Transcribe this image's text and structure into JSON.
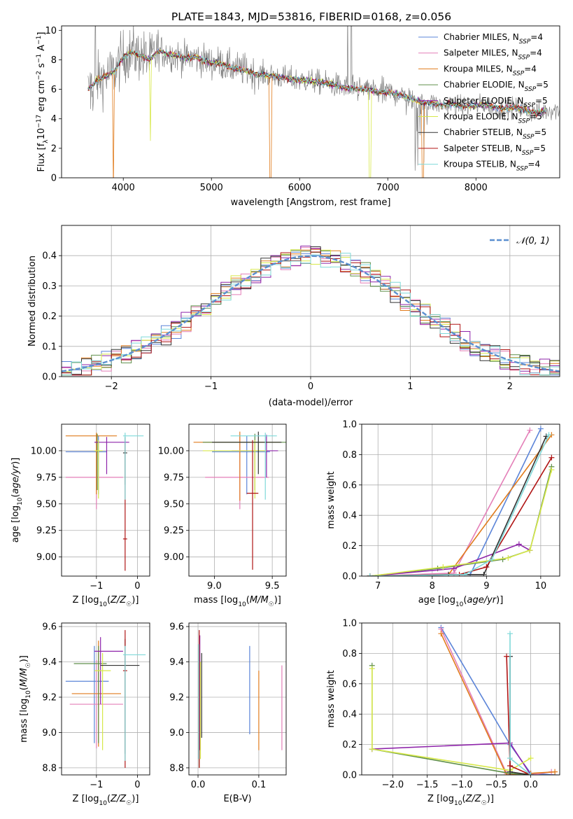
{
  "title": "PLATE=1843, MJD=53816, FIBERID=0168, z=0.056",
  "colors": {
    "Chabrier MILES": "#5b84d8",
    "Salpeter MILES": "#e47fb8",
    "Kroupa MILES": "#e07b1c",
    "Chabrier ELODIE": "#5f8f4a",
    "Salpeter ELODIE": "#8e24aa",
    "Kroupa ELODIE": "#d7e84a",
    "Chabrier STELIB": "#333333",
    "Salpeter STELIB": "#b01515",
    "Kroupa STELIB": "#7fd9d9",
    "data": "#808080",
    "normal": "#5b8fd0"
  },
  "chart_data": [
    {
      "type": "line",
      "panel": "spectrum",
      "xlabel": "wavelength [Angstrom, rest frame]",
      "ylabel": "Flux [f_λ 10^-17 erg cm^-2 s^-1 A^-1]",
      "xlim": [
        3300,
        8950
      ],
      "ylim": [
        0,
        10.3
      ],
      "xticks": [
        4000,
        5000,
        6000,
        7000,
        8000
      ],
      "yticks": [
        0,
        2,
        4,
        6,
        8,
        10
      ],
      "legend_position": "upper right",
      "legend": [
        {
          "name": "Chabrier MILES",
          "nssp": "4"
        },
        {
          "name": "Salpeter MILES",
          "nssp": "4"
        },
        {
          "name": "Kroupa MILES",
          "nssp": "4"
        },
        {
          "name": "Chabrier ELODIE",
          "nssp": "5"
        },
        {
          "name": "Salpeter ELODIE",
          "nssp": "5"
        },
        {
          "name": "Kroupa ELODIE",
          "nssp": "5"
        },
        {
          "name": "Chabrier STELIB",
          "nssp": "5"
        },
        {
          "name": "Salpeter STELIB",
          "nssp": "5"
        },
        {
          "name": "Kroupa STELIB",
          "nssp": "4"
        }
      ],
      "model_continuum": {
        "x": [
          3600,
          3650,
          3700,
          3800,
          3900,
          4000,
          4100,
          4200,
          4300,
          4400,
          4500,
          4600,
          4700,
          4800,
          4900,
          5000,
          5100,
          5200,
          5300,
          5400,
          5500,
          5600,
          5700,
          5800,
          5900,
          6000,
          6100,
          6200,
          6300,
          6400,
          6500,
          6600,
          6700,
          6800,
          6900,
          7000,
          7100,
          7200,
          7300,
          7400,
          7500,
          7600,
          7700,
          7800,
          7900,
          8000,
          8100,
          8200,
          8300,
          8400,
          8500,
          8600,
          8700,
          8800
        ],
        "y": [
          6.0,
          6.3,
          6.6,
          6.9,
          7.2,
          8.2,
          8.5,
          8.3,
          8.0,
          8.6,
          8.4,
          8.3,
          8.1,
          8.2,
          8.0,
          7.8,
          7.8,
          7.5,
          7.4,
          7.3,
          7.0,
          7.0,
          6.9,
          6.8,
          6.7,
          6.6,
          6.6,
          6.5,
          6.4,
          6.3,
          6.1,
          6.1,
          6.0,
          6.0,
          5.8,
          5.8,
          5.7,
          5.5,
          5.3,
          5.1,
          5.1,
          4.9,
          5.0,
          4.9,
          4.8,
          4.9,
          5.0,
          4.8,
          4.7,
          4.8,
          4.7,
          4.5,
          4.4,
          4.6
        ]
      }
    },
    {
      "type": "line",
      "panel": "residual histogram",
      "xlabel": "(data-model)/error",
      "ylabel": "Normed distribution",
      "xlim": [
        -2.5,
        2.5
      ],
      "ylim": [
        0,
        0.5
      ],
      "xticks": [
        -2,
        -1,
        0,
        1,
        2
      ],
      "yticks": [
        0.0,
        0.1,
        0.2,
        0.3,
        0.4
      ],
      "legend_position": "upper right",
      "normal_label": "𝒩(0, 1)",
      "bin_width": 0.1,
      "grid": true
    },
    {
      "type": "scatter",
      "panel": "age vs Z",
      "xlabel": "Z [log10(Z/Z☉)]",
      "ylabel": "age [log10(age/yr)]",
      "xlim": [
        -1.85,
        0.3
      ],
      "ylim": [
        8.82,
        10.25
      ],
      "xticks": [
        -1,
        0
      ],
      "yticks": [
        9.0,
        9.25,
        9.5,
        9.75,
        10.0
      ],
      "grid": true,
      "series": [
        {
          "name": "Chabrier MILES",
          "x": -0.95,
          "xerr": [
            0.8,
            0.2
          ],
          "y": 9.99,
          "yerr": [
            0.4,
            0.15
          ]
        },
        {
          "name": "Salpeter MILES",
          "x": -1.0,
          "xerr": [
            0.75,
            0.65
          ],
          "y": 9.75,
          "yerr": [
            0.3,
            0.4
          ]
        },
        {
          "name": "Kroupa MILES",
          "x": -1.0,
          "xerr": [
            0.75,
            0.5
          ],
          "y": 10.14,
          "yerr": [
            0.55,
            0.03
          ]
        },
        {
          "name": "Chabrier ELODIE",
          "x": -0.98,
          "xerr": [
            0.05,
            0.05
          ],
          "y": 10.08,
          "yerr": [
            0.45,
            0.08
          ]
        },
        {
          "name": "Salpeter ELODIE",
          "x": -0.75,
          "xerr": [
            0.3,
            0.55
          ],
          "y": 10.08,
          "yerr": [
            0.3,
            0.05
          ]
        },
        {
          "name": "Kroupa ELODIE",
          "x": -0.95,
          "xerr": [
            0.1,
            0.1
          ],
          "y": 10.0,
          "yerr": [
            0.45,
            0.1
          ]
        },
        {
          "name": "Chabrier STELIB",
          "x": -0.3,
          "xerr": [
            0.05,
            0.05
          ],
          "y": 9.98,
          "yerr": [
            0.3,
            0.15
          ]
        },
        {
          "name": "Salpeter STELIB",
          "x": -0.3,
          "xerr": [
            0.05,
            0.05
          ],
          "y": 9.17,
          "yerr": [
            0.3,
            0.9
          ]
        },
        {
          "name": "Kroupa STELIB",
          "x": -0.3,
          "xerr": [
            0.05,
            0.45
          ],
          "y": 10.14,
          "yerr": [
            0.6,
            0.03
          ]
        }
      ]
    },
    {
      "type": "scatter",
      "panel": "age vs mass",
      "xlabel": "mass [log10(M/M☉)]",
      "ylabel": "",
      "xlim": [
        8.78,
        9.62
      ],
      "ylim": [
        8.82,
        10.25
      ],
      "xticks": [
        9.0,
        9.5
      ],
      "yticks": [
        9.0,
        9.25,
        9.5,
        9.75,
        10.0
      ],
      "grid": true,
      "series": [
        {
          "name": "Chabrier MILES",
          "x": 9.28,
          "xerr": [
            0.3,
            0.2
          ],
          "y": 9.99,
          "yerr": [
            0.4,
            0.15
          ]
        },
        {
          "name": "Salpeter MILES",
          "x": 9.22,
          "xerr": [
            0.3,
            0.25
          ],
          "y": 9.75,
          "yerr": [
            0.3,
            0.4
          ]
        },
        {
          "name": "Kroupa MILES",
          "x": 9.22,
          "xerr": [
            0.4,
            0.35
          ],
          "y": 10.08,
          "yerr": [
            0.55,
            0.1
          ]
        },
        {
          "name": "Chabrier ELODIE",
          "x": 9.35,
          "xerr": [
            0.45,
            0.35
          ],
          "y": 10.08,
          "yerr": [
            0.45,
            0.08
          ]
        },
        {
          "name": "Salpeter ELODIE",
          "x": 9.45,
          "xerr": [
            0.3,
            0.1
          ],
          "y": 10.0,
          "yerr": [
            0.25,
            0.15
          ]
        },
        {
          "name": "Kroupa ELODIE",
          "x": 9.35,
          "xerr": [
            0.45,
            0.1
          ],
          "y": 10.0,
          "yerr": [
            0.45,
            0.1
          ]
        },
        {
          "name": "Chabrier STELIB",
          "x": 9.38,
          "xerr": [
            0.4,
            0.2
          ],
          "y": 10.08,
          "yerr": [
            0.3,
            0.1
          ]
        },
        {
          "name": "Salpeter STELIB",
          "x": 9.33,
          "xerr": [
            0.05,
            0.05
          ],
          "y": 9.6,
          "yerr": [
            0.72,
            0.5
          ]
        },
        {
          "name": "Kroupa STELIB",
          "x": 9.44,
          "xerr": [
            0.3,
            0.1
          ],
          "y": 10.14,
          "yerr": [
            0.6,
            0.03
          ]
        }
      ]
    },
    {
      "type": "line",
      "panel": "mass weight vs age",
      "xlabel": "age [log10(age/yr)]",
      "ylabel": "mass weight",
      "xlim": [
        6.7,
        10.35
      ],
      "ylim": [
        0,
        1.0
      ],
      "xticks": [
        7,
        8,
        9,
        10
      ],
      "yticks": [
        0.0,
        0.2,
        0.4,
        0.6,
        0.8,
        1.0
      ],
      "grid": true,
      "series": [
        {
          "name": "Chabrier MILES",
          "x": [
            6.85,
            8.7,
            10.0
          ],
          "y": [
            0.0,
            0.01,
            0.97
          ]
        },
        {
          "name": "Salpeter MILES",
          "x": [
            6.85,
            8.4,
            9.8
          ],
          "y": [
            0.0,
            0.02,
            0.96
          ]
        },
        {
          "name": "Kroupa MILES",
          "x": [
            6.85,
            8.3,
            10.2
          ],
          "y": [
            0.0,
            0.01,
            0.93
          ]
        },
        {
          "name": "Chabrier ELODIE",
          "x": [
            6.85,
            8.1,
            9.3,
            9.8,
            10.2
          ],
          "y": [
            0.0,
            0.05,
            0.11,
            0.17,
            0.72
          ]
        },
        {
          "name": "Salpeter ELODIE",
          "x": [
            6.85,
            8.4,
            9.6,
            9.8
          ],
          "y": [
            0.0,
            0.05,
            0.21,
            0.17
          ]
        },
        {
          "name": "Kroupa ELODIE",
          "x": [
            6.85,
            8.2,
            9.4,
            9.8,
            10.2
          ],
          "y": [
            0.0,
            0.06,
            0.12,
            0.17,
            0.7
          ]
        },
        {
          "name": "Chabrier STELIB",
          "x": [
            6.85,
            8.3,
            8.95,
            10.1
          ],
          "y": [
            0.0,
            0.01,
            0.01,
            0.92
          ]
        },
        {
          "name": "Salpeter STELIB",
          "x": [
            6.85,
            8.5,
            9.0,
            10.2
          ],
          "y": [
            0.0,
            0.01,
            0.06,
            0.78
          ]
        },
        {
          "name": "Kroupa STELIB",
          "x": [
            6.85,
            8.6,
            9.1,
            10.15
          ],
          "y": [
            0.0,
            0.01,
            0.11,
            0.93
          ]
        }
      ]
    },
    {
      "type": "scatter",
      "panel": "mass vs Z",
      "xlabel": "Z [log10(Z/Z☉)]",
      "ylabel": "mass [log10(M/M☉)]",
      "xlim": [
        -1.85,
        0.3
      ],
      "ylim": [
        8.76,
        9.62
      ],
      "xticks": [
        -1,
        0
      ],
      "yticks": [
        8.8,
        9.0,
        9.2,
        9.4,
        9.6
      ],
      "grid": true,
      "series": [
        {
          "name": "Chabrier MILES",
          "x": -1.05,
          "xerr": [
            0.7,
            0.35
          ],
          "y": 9.29,
          "yerr": [
            0.35,
            0.2
          ]
        },
        {
          "name": "Salpeter MILES",
          "x": -1.0,
          "xerr": [
            0.65,
            0.65
          ],
          "y": 9.16,
          "yerr": [
            0.25,
            0.25
          ]
        },
        {
          "name": "Kroupa MILES",
          "x": -0.95,
          "xerr": [
            0.65,
            0.55
          ],
          "y": 9.22,
          "yerr": [
            0.3,
            0.3
          ]
        },
        {
          "name": "Chabrier ELODIE",
          "x": -0.95,
          "xerr": [
            0.6,
            0.2
          ],
          "y": 9.39,
          "yerr": [
            0.45,
            0.1
          ]
        },
        {
          "name": "Salpeter ELODIE",
          "x": -0.9,
          "xerr": [
            0.15,
            0.55
          ],
          "y": 9.46,
          "yerr": [
            0.3,
            0.08
          ]
        },
        {
          "name": "Kroupa ELODIE",
          "x": -0.85,
          "xerr": [
            0.2,
            0.2
          ],
          "y": 9.35,
          "yerr": [
            0.45,
            0.1
          ]
        },
        {
          "name": "Chabrier STELIB",
          "x": -0.3,
          "xerr": [
            0.6,
            0.35
          ],
          "y": 9.38,
          "yerr": [
            0.5,
            0.15
          ]
        },
        {
          "name": "Salpeter STELIB",
          "x": -0.3,
          "xerr": [
            0.05,
            0.05
          ],
          "y": 9.35,
          "yerr": [
            0.55,
            0.23
          ]
        },
        {
          "name": "Kroupa STELIB",
          "x": -0.3,
          "xerr": [
            0.05,
            0.5
          ],
          "y": 9.44,
          "yerr": [
            0.6,
            0.05
          ]
        }
      ]
    },
    {
      "type": "scatter",
      "panel": "mass vs E(B-V)",
      "xlabel": "E(B-V)",
      "ylabel": "",
      "xlim": [
        -0.015,
        0.145
      ],
      "ylim": [
        8.76,
        9.62
      ],
      "xticks": [
        0.0,
        0.1
      ],
      "yticks": [
        8.8,
        9.0,
        9.2,
        9.4,
        9.6
      ],
      "grid": true,
      "series": [
        {
          "name": "Chabrier MILES",
          "x": 0.085,
          "xerr": [
            0,
            0
          ],
          "y": 9.29,
          "yerr": [
            0.3,
            0.2
          ]
        },
        {
          "name": "Salpeter MILES",
          "x": 0.138,
          "xerr": [
            0,
            0
          ],
          "y": 9.2,
          "yerr": [
            0.3,
            0.18
          ]
        },
        {
          "name": "Kroupa MILES",
          "x": 0.1,
          "xerr": [
            0,
            0
          ],
          "y": 9.2,
          "yerr": [
            0.3,
            0.15
          ]
        },
        {
          "name": "Chabrier ELODIE",
          "x": 0.002,
          "xerr": [
            0,
            0
          ],
          "y": 9.3,
          "yerr": [
            0.5,
            0.2
          ]
        },
        {
          "name": "Salpeter ELODIE",
          "x": 0.003,
          "xerr": [
            0,
            0
          ],
          "y": 9.4,
          "yerr": [
            0.5,
            0.15
          ]
        },
        {
          "name": "Kroupa ELODIE",
          "x": 0.004,
          "xerr": [
            0,
            0
          ],
          "y": 9.3,
          "yerr": [
            0.45,
            0.1
          ]
        },
        {
          "name": "Chabrier STELIB",
          "x": 0.006,
          "xerr": [
            0,
            0
          ],
          "y": 9.3,
          "yerr": [
            0.33,
            0.15
          ]
        },
        {
          "name": "Salpeter STELIB",
          "x": 0.002,
          "xerr": [
            0,
            0
          ],
          "y": 9.3,
          "yerr": [
            0.5,
            0.28
          ]
        },
        {
          "name": "Kroupa STELIB",
          "x": 0.001,
          "xerr": [
            0,
            0
          ],
          "y": 9.2,
          "yerr": [
            0.35,
            0.3
          ]
        }
      ]
    },
    {
      "type": "line",
      "panel": "mass weight vs Z",
      "xlabel": "Z [log10(Z/Z☉)]",
      "ylabel": "mass weight",
      "xlim": [
        -2.45,
        0.42
      ],
      "ylim": [
        0,
        1.0
      ],
      "xticks": [
        -2.0,
        -1.5,
        -1.0,
        -0.5,
        0.0
      ],
      "yticks": [
        0.0,
        0.2,
        0.4,
        0.6,
        0.8,
        1.0
      ],
      "grid": true,
      "series": [
        {
          "name": "Chabrier MILES",
          "x": [
            -1.3,
            -0.3,
            0.0,
            0.35
          ],
          "y": [
            0.97,
            0.2,
            0.01,
            0.0
          ]
        },
        {
          "name": "Salpeter MILES",
          "x": [
            -1.3,
            -0.35,
            0.0,
            0.3
          ],
          "y": [
            0.96,
            0.01,
            0.0,
            0.02
          ]
        },
        {
          "name": "Kroupa MILES",
          "x": [
            -1.3,
            -0.35,
            0.0,
            0.35
          ],
          "y": [
            0.93,
            0.0,
            0.01,
            0.02
          ]
        },
        {
          "name": "Chabrier ELODIE",
          "x": [
            -2.3,
            -2.3,
            -0.3,
            0.0
          ],
          "y": [
            0.72,
            0.17,
            0.01,
            0.0
          ]
        },
        {
          "name": "Salpeter ELODIE",
          "x": [
            -2.3,
            -0.3,
            0.0
          ],
          "y": [
            0.17,
            0.21,
            0.0
          ]
        },
        {
          "name": "Kroupa ELODIE",
          "x": [
            -2.3,
            -2.3,
            -0.3,
            0.0
          ],
          "y": [
            0.7,
            0.17,
            0.03,
            0.11
          ]
        },
        {
          "name": "Chabrier STELIB",
          "x": [
            -0.3,
            -0.3,
            0.0
          ],
          "y": [
            0.78,
            0.02,
            0.0
          ]
        },
        {
          "name": "Salpeter STELIB",
          "x": [
            -0.35,
            -0.3,
            0.0
          ],
          "y": [
            0.78,
            0.06,
            0.0
          ]
        },
        {
          "name": "Kroupa STELIB",
          "x": [
            -0.3,
            -0.3,
            0.0
          ],
          "y": [
            0.93,
            0.11,
            0.0
          ]
        }
      ]
    }
  ]
}
